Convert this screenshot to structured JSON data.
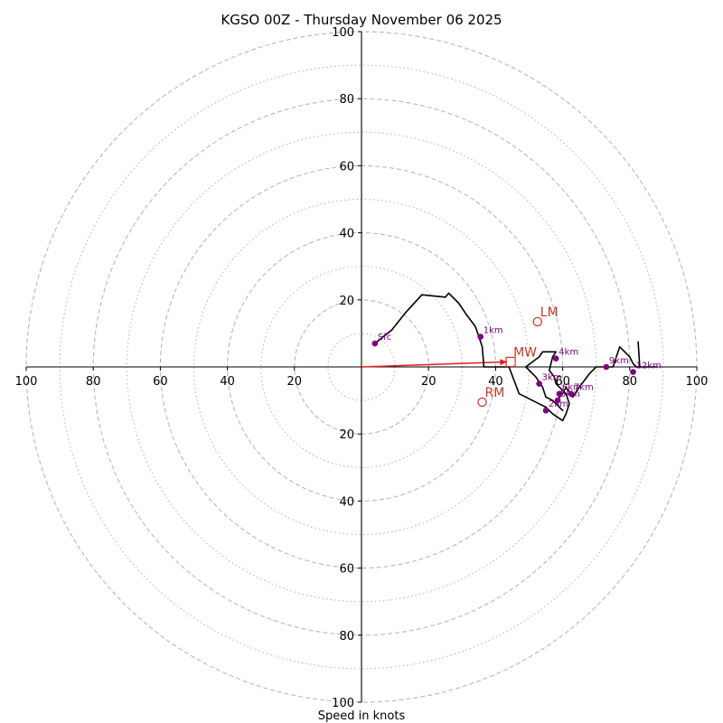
{
  "chart_data": {
    "type": "hodograph",
    "title": "KGSO 00Z - Thursday November 06 2025",
    "xlabel": "Speed in knots",
    "range": [
      -100,
      100
    ],
    "ring_values": [
      10,
      20,
      30,
      40,
      50,
      60,
      70,
      80,
      90,
      100
    ],
    "tick_labels": {
      "x_negative": [
        "100",
        "80",
        "60",
        "40",
        "20"
      ],
      "x_positive": [
        "20",
        "40",
        "60",
        "80",
        "100"
      ],
      "y_positive": [
        "20",
        "40",
        "60",
        "80",
        "100"
      ],
      "y_negative": [
        "20",
        "40",
        "60",
        "80",
        "100"
      ]
    },
    "hodograph_trace": [
      [
        4,
        7
      ],
      [
        9,
        11
      ],
      [
        13,
        16
      ],
      [
        18,
        21.5
      ],
      [
        25,
        20.8
      ],
      [
        26,
        22
      ],
      [
        27,
        21
      ],
      [
        29,
        19
      ],
      [
        31,
        16
      ],
      [
        34,
        12
      ],
      [
        36,
        6
      ],
      [
        36.5,
        0
      ],
      [
        42,
        0
      ],
      [
        44,
        0
      ],
      [
        47,
        -8
      ],
      [
        53,
        -11
      ],
      [
        55,
        -12
      ],
      [
        57,
        -14
      ],
      [
        60,
        -16
      ],
      [
        61,
        -14
      ],
      [
        62,
        -11
      ],
      [
        61,
        -8
      ],
      [
        58,
        -5
      ],
      [
        57.5,
        -3
      ],
      [
        56,
        -1
      ],
      [
        57,
        3
      ],
      [
        58,
        4.5
      ],
      [
        54,
        4.5
      ],
      [
        53,
        3
      ],
      [
        49,
        0
      ],
      [
        52,
        -3
      ],
      [
        54,
        -6
      ],
      [
        55,
        -9
      ],
      [
        56,
        -9.5
      ],
      [
        57,
        -10
      ],
      [
        60,
        -13
      ],
      [
        59,
        -12
      ],
      [
        58,
        -10.5
      ],
      [
        59,
        -9
      ],
      [
        60,
        -8
      ],
      [
        61,
        -6
      ],
      [
        63,
        -9
      ],
      [
        65,
        -6
      ],
      [
        68,
        -2
      ],
      [
        70,
        0
      ],
      [
        75,
        0
      ],
      [
        76,
        3
      ],
      [
        77,
        6
      ],
      [
        78,
        5
      ],
      [
        80,
        3
      ],
      [
        81,
        1
      ],
      [
        82,
        0
      ],
      [
        83,
        0
      ],
      [
        82.5,
        7.5
      ],
      [
        83,
        0
      ],
      [
        86,
        0
      ],
      [
        88,
        0
      ]
    ],
    "height_markers": [
      {
        "label": "Sfc",
        "u": 4,
        "v": 7
      },
      {
        "label": "1km",
        "u": 35.5,
        "v": 9
      },
      {
        "label": "2km",
        "u": 55,
        "v": -13
      },
      {
        "label": "3km",
        "u": 53,
        "v": -5
      },
      {
        "label": "4km",
        "u": 58,
        "v": 2.5
      },
      {
        "label": "5km",
        "u": 58.5,
        "v": -10
      },
      {
        "label": "6km",
        "u": 59,
        "v": -8
      },
      {
        "label": "7km",
        "u": 62.5,
        "v": -8
      },
      {
        "label": "9km",
        "u": 73,
        "v": 0
      },
      {
        "label": "12km",
        "u": 81,
        "v": -1.5
      }
    ],
    "motion_markers": [
      {
        "label": "LM",
        "u": 52.5,
        "v": 13.5,
        "shape": "circle"
      },
      {
        "label": "MW",
        "u": 44.5,
        "v": 1.5,
        "shape": "square"
      },
      {
        "label": "RM",
        "u": 36,
        "v": -10.5,
        "shape": "circle"
      }
    ],
    "mean_wind_vector": {
      "u": 43.5,
      "v": 1.5
    },
    "colors": {
      "trace": "#000000",
      "height_marker": "#800080",
      "storm_motion": "#c0392b",
      "vector": "#e02020",
      "ring": "#b8b8b8",
      "axis": "#000000"
    }
  }
}
